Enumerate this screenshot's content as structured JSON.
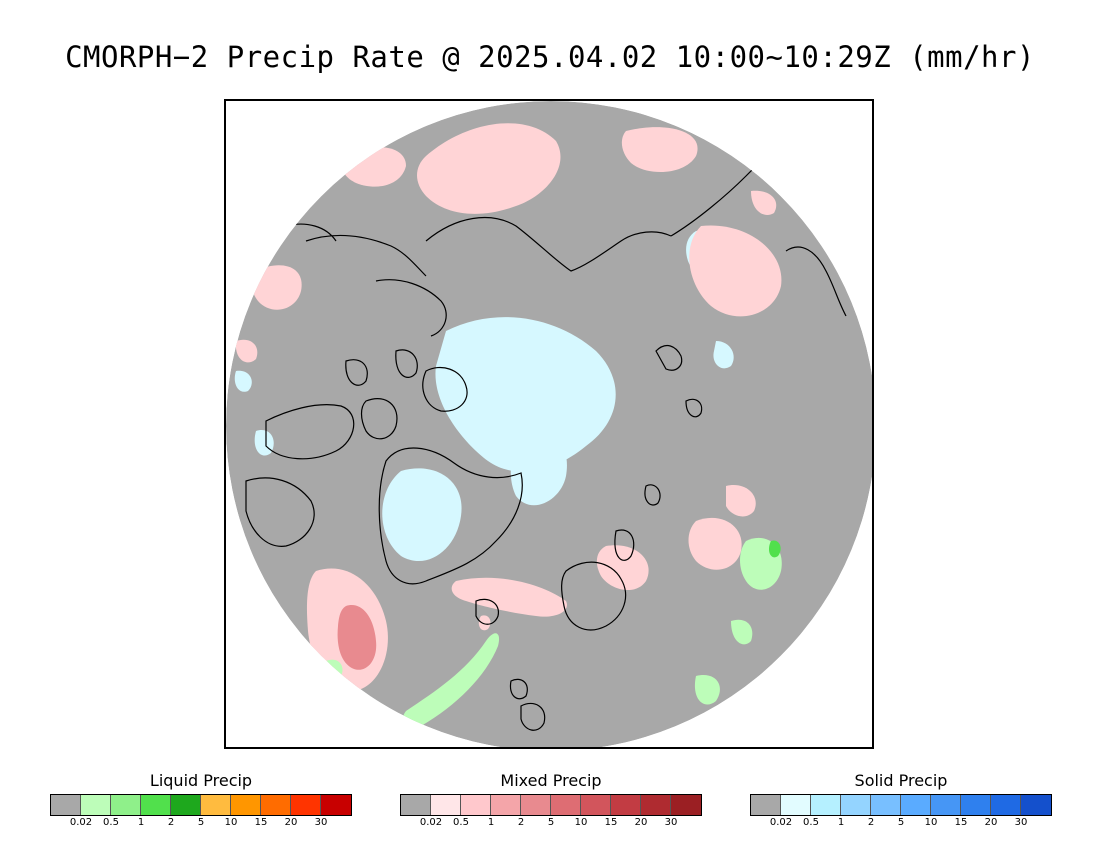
{
  "title": "CMORPH−2 Precip Rate @ 2025.04.02 10:00~10:29Z (mm/hr)",
  "colors": {
    "no_precip": "#a8a8a8",
    "mixed_light": "#ffd4d6",
    "solid_light": "#d6f8ff",
    "liquid_light": "#bdfdb9",
    "mixed_moderate": "#e88a8f",
    "coastline": "#000000"
  },
  "legends": [
    {
      "title": "Liquid Precip",
      "colors": [
        "#a8a8a8",
        "#bdfdb9",
        "#8ff08a",
        "#51e04c",
        "#1ea81d",
        "#ffbb3f",
        "#ff9600",
        "#ff6c00",
        "#ff3400",
        "#c80000"
      ],
      "ticks": [
        "0.02",
        "0.5",
        "1",
        "2",
        "5",
        "10",
        "15",
        "20",
        "30"
      ]
    },
    {
      "title": "Mixed Precip",
      "colors": [
        "#a8a8a8",
        "#ffe6e8",
        "#ffc8cc",
        "#f4a5a9",
        "#e88a8f",
        "#de6d73",
        "#d2555c",
        "#c23c43",
        "#af2b30",
        "#9b1f23"
      ],
      "ticks": [
        "0.02",
        "0.5",
        "1",
        "2",
        "5",
        "10",
        "15",
        "20",
        "30"
      ]
    },
    {
      "title": "Solid Precip",
      "colors": [
        "#a8a8a8",
        "#e2fcff",
        "#b5f0ff",
        "#94d4ff",
        "#78bfff",
        "#5aabff",
        "#4696f5",
        "#2f80ee",
        "#1f6ae4",
        "#1450cc"
      ],
      "ticks": [
        "0.02",
        "0.5",
        "1",
        "2",
        "5",
        "10",
        "15",
        "20",
        "30"
      ]
    }
  ]
}
